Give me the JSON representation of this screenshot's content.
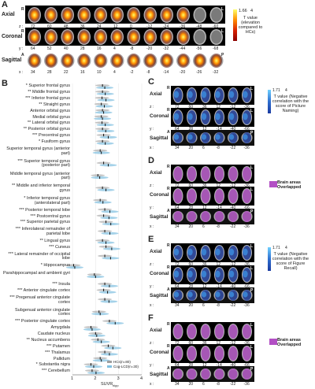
{
  "panelA": {
    "label": "A",
    "rows": [
      {
        "name": "Axial",
        "side_left": "R",
        "side_right": "L",
        "coord_prefix": "z :",
        "coords": [
          "72",
          "60",
          "48",
          "36",
          "24",
          "12",
          "0",
          "-12",
          "-24",
          "-36",
          "-48",
          "-60"
        ],
        "bg": "dark"
      },
      {
        "name": "Coronal",
        "side_left": "R",
        "side_right": "L",
        "coord_prefix": "y :",
        "coords": [
          "64",
          "52",
          "40",
          "28",
          "16",
          "4",
          "-8",
          "-20",
          "-32",
          "-44",
          "-56",
          "-68"
        ],
        "bg": "dark"
      },
      {
        "name": "Sagittal",
        "side_left": "A",
        "side_right": "P",
        "coord_prefix": "x :",
        "coords": [
          "34",
          "28",
          "22",
          "16",
          "10",
          "4",
          "-2",
          "-8",
          "-14",
          "-20",
          "-26",
          "-32"
        ],
        "bg": "light"
      }
    ],
    "colorbar": {
      "min": "1.66",
      "max": "4",
      "caption": "T value (elevation compared to HCs)"
    }
  },
  "panelB": {
    "label": "B",
    "xlabel": "SUVR",
    "xlabel_sub": "hipp",
    "ticks": [
      "1",
      "2",
      "3",
      "4"
    ],
    "xlim": [
      1,
      4
    ],
    "legend": [
      {
        "name": "HCs(n=80)",
        "color": "#9e9e9e"
      },
      {
        "name": "Cog-LCD(n=30)",
        "color": "#7fbfe0"
      }
    ],
    "regions": [
      {
        "name": "Superior frontal gyrus",
        "sig": "*",
        "hc": 2.3,
        "cog": 2.4,
        "lines": 1
      },
      {
        "name": "Middle frontal gyrus",
        "sig": "**",
        "hc": 2.3,
        "cog": 2.42,
        "lines": 1
      },
      {
        "name": "Inferior frontal gyrus",
        "sig": "***",
        "hc": 2.28,
        "cog": 2.45,
        "lines": 1
      },
      {
        "name": "Straight gyrus",
        "sig": "**",
        "hc": 2.25,
        "cog": 2.38,
        "lines": 1
      },
      {
        "name": "Anterior orbital gyrus",
        "sig": "",
        "hc": 2.3,
        "cog": 2.35,
        "lines": 1
      },
      {
        "name": "Medial orbital gyrus",
        "sig": "",
        "hc": 2.25,
        "cog": 2.3,
        "lines": 1
      },
      {
        "name": "Lateral orbital gyrus",
        "sig": "**",
        "hc": 2.28,
        "cog": 2.42,
        "lines": 1
      },
      {
        "name": "Posterior orbital gyrus",
        "sig": "**",
        "hc": 2.3,
        "cog": 2.44,
        "lines": 1
      },
      {
        "name": "Precentral gyrus",
        "sig": "***",
        "hc": 2.35,
        "cog": 2.55,
        "lines": 1
      },
      {
        "name": "Fusiform gyrus",
        "sig": "*",
        "hc": 2.3,
        "cog": 2.42,
        "lines": 1
      },
      {
        "name": "Superior temporal gyrus (anterior part)",
        "sig": "",
        "hc": 2.2,
        "cog": 2.25,
        "lines": 2
      },
      {
        "name": "Superior temporal gyrus (posterior part)",
        "sig": "***",
        "hc": 2.35,
        "cog": 2.55,
        "lines": 2
      },
      {
        "name": "Middle temporal gyrus (anterior part)",
        "sig": "",
        "hc": 2.1,
        "cog": 2.18,
        "lines": 2
      },
      {
        "name": "Middle and inferior temporal gyrus",
        "sig": "**",
        "hc": 2.3,
        "cog": 2.45,
        "lines": 2
      },
      {
        "name": "Inferior temporal gyrus (anterolateral part)",
        "sig": "*",
        "hc": 2.2,
        "cog": 2.32,
        "lines": 2
      },
      {
        "name": "Posterior temporal lobe",
        "sig": "***",
        "hc": 2.4,
        "cog": 2.62,
        "lines": 1
      },
      {
        "name": "Postcentral gyrus",
        "sig": "***",
        "hc": 2.35,
        "cog": 2.58,
        "lines": 1
      },
      {
        "name": "Superior parietal gyrus",
        "sig": "***",
        "hc": 2.45,
        "cog": 2.66,
        "lines": 1
      },
      {
        "name": "Inferolateral remainder of parietal lobe",
        "sig": "***",
        "hc": 2.4,
        "cog": 2.62,
        "lines": 2
      },
      {
        "name": "Lingual gyrus",
        "sig": "**",
        "hc": 2.3,
        "cog": 2.45,
        "lines": 1
      },
      {
        "name": "Cuneus",
        "sig": "***",
        "hc": 2.45,
        "cog": 2.7,
        "lines": 1
      },
      {
        "name": "Lateral remainder of occipital lobe",
        "sig": "***",
        "hc": 2.4,
        "cog": 2.65,
        "lines": 2
      },
      {
        "name": "Hippocampus",
        "sig": "*",
        "hc": 1.05,
        "cog": 1.1,
        "lines": 1
      },
      {
        "name": "Parahippocampal and ambient gyri",
        "sig": "",
        "hc": 1.95,
        "cog": 2.0,
        "lines": 2
      },
      {
        "name": "Insula",
        "sig": "***",
        "hc": 2.4,
        "cog": 2.6,
        "lines": 1
      },
      {
        "name": "Anterior cingulate cortex",
        "sig": "***",
        "hc": 2.35,
        "cog": 2.52,
        "lines": 1
      },
      {
        "name": "Pregenual anterior cingulate cortex",
        "sig": "***",
        "hc": 2.4,
        "cog": 2.58,
        "lines": 2
      },
      {
        "name": "Subgenual anterior cingulate cortex",
        "sig": "",
        "hc": 2.15,
        "cog": 2.2,
        "lines": 2
      },
      {
        "name": "Posterior cingulate cortex",
        "sig": "***",
        "hc": 2.6,
        "cog": 2.85,
        "lines": 1
      },
      {
        "name": "Amygdala",
        "sig": "",
        "hc": 1.8,
        "cog": 1.85,
        "lines": 1
      },
      {
        "name": "Caudate nucleus",
        "sig": "",
        "hc": 2.0,
        "cog": 2.05,
        "lines": 1
      },
      {
        "name": "Nucleus accumbens",
        "sig": "**",
        "hc": 2.1,
        "cog": 2.25,
        "lines": 1
      },
      {
        "name": "Putamen",
        "sig": "***",
        "hc": 2.55,
        "cog": 2.75,
        "lines": 1
      },
      {
        "name": "Thalamus",
        "sig": "***",
        "hc": 2.4,
        "cog": 2.6,
        "lines": 1
      },
      {
        "name": "Pallidum",
        "sig": "",
        "hc": 2.2,
        "cog": 2.25,
        "lines": 1
      },
      {
        "name": "Substantia nigra",
        "sig": "*",
        "hc": 1.8,
        "cog": 1.92,
        "lines": 1
      },
      {
        "name": "Cerebellum",
        "sig": "***",
        "hc": 1.85,
        "cog": 2.02,
        "lines": 1
      }
    ]
  },
  "smallPanels": [
    {
      "label": "C",
      "type": "blue",
      "caption": "T value (Negative correlation with the score of Picture Naming)",
      "cb_min": "1.71",
      "cb_max": "4",
      "rows": [
        {
          "name": "Axial",
          "side_left": "R",
          "side_right": "L",
          "coord_prefix": "z :",
          "coords": [
            "72",
            "60",
            "36",
            "12",
            "-12",
            "-36"
          ]
        },
        {
          "name": "Coronal",
          "side_left": "R",
          "side_right": "L",
          "coord_prefix": "y :",
          "coords": [
            "64",
            "28",
            "12",
            "-14",
            "-40",
            "-66"
          ]
        },
        {
          "name": "Sagittal",
          "side_left": "A",
          "side_right": "P",
          "coord_prefix": "x :",
          "coords": [
            "34",
            "20",
            "6",
            "-8",
            "-22",
            "-36"
          ]
        }
      ]
    },
    {
      "label": "D",
      "type": "purple",
      "caption": "Brain areas Overlapped",
      "rows": [
        {
          "name": "Axial",
          "side_left": "R",
          "side_right": "L",
          "coord_prefix": "z :",
          "coords": [
            "72",
            "60",
            "36",
            "12",
            "-12",
            "-36"
          ]
        },
        {
          "name": "Coronal",
          "side_left": "R",
          "side_right": "L",
          "coord_prefix": "y :",
          "coords": [
            "64",
            "28",
            "12",
            "-14",
            "-40",
            "-66"
          ]
        },
        {
          "name": "Sagittal",
          "side_left": "A",
          "side_right": "P",
          "coord_prefix": "x :",
          "coords": [
            "34",
            "20",
            "6",
            "-8",
            "-22",
            "-36"
          ]
        }
      ]
    },
    {
      "label": "E",
      "type": "blue",
      "caption": "T value (Negative correlation with the score of Figure Recall)",
      "cb_min": "1.71",
      "cb_max": "4",
      "rows": [
        {
          "name": "Axial",
          "side_left": "R",
          "side_right": "L",
          "coord_prefix": "z :",
          "coords": [
            "72",
            "60",
            "36",
            "12",
            "-12",
            "-36"
          ]
        },
        {
          "name": "Coronal",
          "side_left": "R",
          "side_right": "L",
          "coord_prefix": "y :",
          "coords": [
            "64",
            "28",
            "12",
            "-14",
            "-40",
            "-66"
          ]
        },
        {
          "name": "Sagittal",
          "side_left": "A",
          "side_right": "P",
          "coord_prefix": "x :",
          "coords": [
            "34",
            "20",
            "6",
            "-8",
            "-22",
            "-36"
          ]
        }
      ]
    },
    {
      "label": "F",
      "type": "purple",
      "caption": "Brain areas Overlapped",
      "rows": [
        {
          "name": "Axial",
          "side_left": "R",
          "side_right": "L",
          "coord_prefix": "z :",
          "coords": [
            "72",
            "60",
            "36",
            "12",
            "-12",
            "-36"
          ]
        },
        {
          "name": "Coronal",
          "side_left": "R",
          "side_right": "L",
          "coord_prefix": "y :",
          "coords": [
            "64",
            "28",
            "12",
            "-14",
            "-40",
            "-66"
          ]
        },
        {
          "name": "Sagittal",
          "side_left": "A",
          "side_right": "P",
          "coord_prefix": "x :",
          "coords": [
            "34",
            "20",
            "6",
            "-8",
            "-22",
            "-36"
          ]
        }
      ]
    }
  ],
  "colors": {
    "hot_low": "#8b0000",
    "hot_mid": "#ff8c00",
    "hot_high": "#ffff66",
    "blue_low": "#1a3aa0",
    "blue_high": "#6fd0ff",
    "purple": "#b24fc4",
    "hc": "#9e9e9e",
    "cog": "#7fbfe0"
  }
}
